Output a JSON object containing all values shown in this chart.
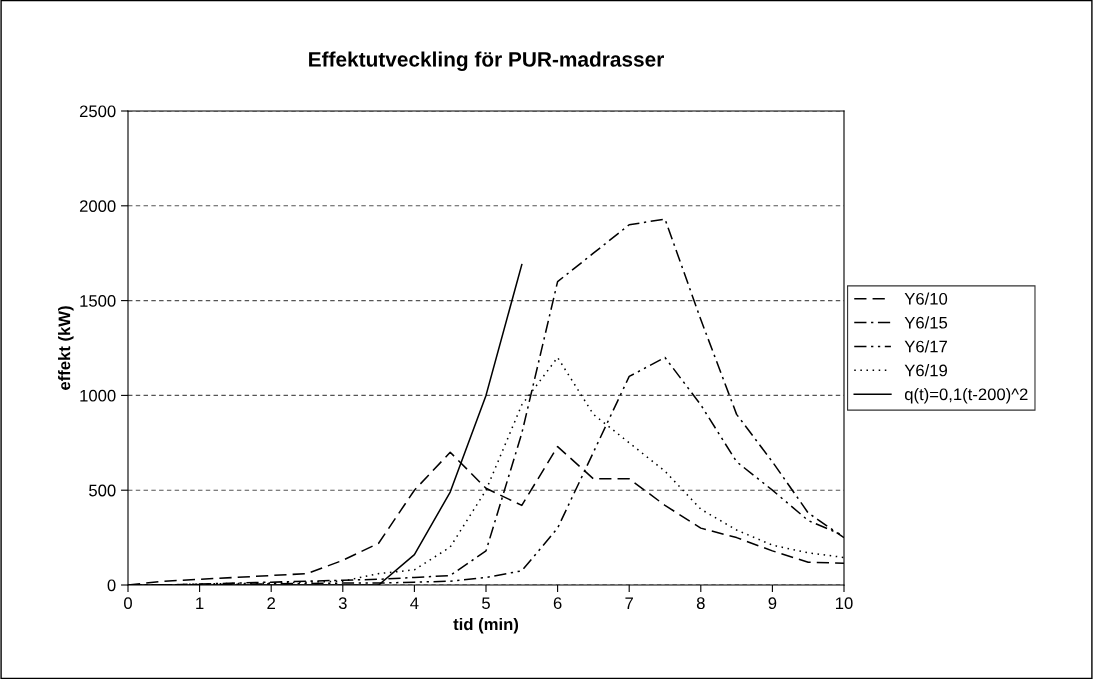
{
  "chart_data": {
    "type": "line",
    "title": "Effektutveckling för PUR-madrasser",
    "xlabel": "tid (min)",
    "ylabel": "effekt (kW)",
    "x": [
      0,
      0.5,
      1,
      1.5,
      2,
      2.5,
      3,
      3.5,
      4,
      4.5,
      5,
      5.5,
      6,
      6.5,
      7,
      7.5,
      8,
      8.5,
      9,
      9.5,
      10
    ],
    "series": [
      {
        "name": "Y6/10",
        "color": "#000000",
        "line_style": "longdash",
        "values": [
          0,
          20,
          30,
          40,
          50,
          60,
          130,
          220,
          500,
          700,
          510,
          420,
          730,
          560,
          560,
          420,
          300,
          250,
          180,
          120,
          115
        ]
      },
      {
        "name": "Y6/15",
        "color": "#000000",
        "line_style": "dashdot",
        "values": [
          0,
          0,
          5,
          10,
          15,
          20,
          25,
          30,
          40,
          50,
          180,
          800,
          1600,
          1750,
          1900,
          1930,
          1400,
          900,
          650,
          380,
          250
        ]
      },
      {
        "name": "Y6/17",
        "color": "#000000",
        "line_style": "dashdotdot",
        "values": [
          0,
          0,
          2,
          4,
          6,
          8,
          10,
          10,
          15,
          20,
          40,
          75,
          300,
          700,
          1100,
          1200,
          950,
          650,
          500,
          340,
          260
        ]
      },
      {
        "name": "Y6/19",
        "color": "#000000",
        "line_style": "dotted",
        "values": [
          0,
          0,
          5,
          8,
          10,
          15,
          20,
          60,
          80,
          200,
          500,
          950,
          1200,
          900,
          750,
          600,
          400,
          290,
          210,
          170,
          145
        ]
      },
      {
        "name": "q(t)=0,1(t-200)^2",
        "color": "#000000",
        "line_style": "solid",
        "x": [
          0,
          0.5,
          1,
          1.5,
          2,
          2.5,
          3,
          3.5,
          4,
          4.5,
          5,
          5.5
        ],
        "values": [
          0,
          0,
          0,
          0,
          0,
          0,
          0,
          0,
          160,
          490,
          1000,
          1690
        ]
      }
    ],
    "xlim": [
      0,
      10
    ],
    "xticks": [
      0,
      1,
      2,
      3,
      4,
      5,
      6,
      7,
      8,
      9,
      10
    ],
    "ylim": [
      0,
      2500
    ],
    "yticks": [
      0,
      500,
      1000,
      1500,
      2000,
      2500
    ],
    "grid": "y",
    "legend": "right",
    "marker": "none"
  }
}
